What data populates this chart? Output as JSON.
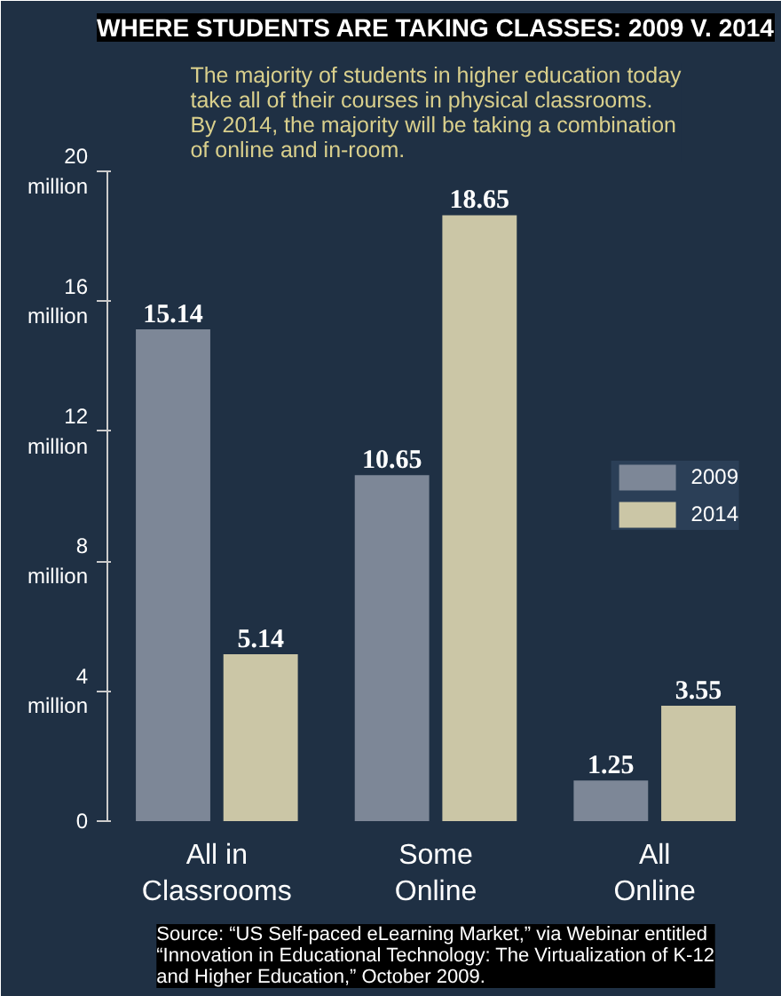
{
  "chart_data": {
    "type": "bar",
    "title": "WHERE STUDENTS ARE TAKING CLASSES: 2009 V. 2014",
    "subtitle": "The majority of students in higher education today take all of their courses in physical classrooms. By 2014, the majority will be taking a combination of online and in-room.",
    "categories": [
      "All in Classrooms",
      "Some Online",
      "All Online"
    ],
    "series": [
      {
        "name": "2009",
        "color": "#7d8797",
        "values": [
          15.14,
          10.65,
          1.25
        ]
      },
      {
        "name": "2014",
        "color": "#cbc6a6",
        "values": [
          5.14,
          18.65,
          3.55
        ]
      }
    ],
    "ylim": [
      0,
      20
    ],
    "yticks": [
      0,
      {
        "value": 4,
        "label": "4 million"
      },
      {
        "value": 8,
        "label": "8 million"
      },
      {
        "value": 12,
        "label": "12 million"
      },
      {
        "value": 16,
        "label": "16 million"
      },
      {
        "value": 20,
        "label": "20 million"
      }
    ],
    "data_labels": true,
    "legend": "right",
    "grid": false,
    "annotations": [
      "Source: “US Self-paced eLearning Market,” via Webinar entitled “Innovation in Educational Technology: The Virtualization of K-12 and Higher Education,” October 2009."
    ]
  }
}
